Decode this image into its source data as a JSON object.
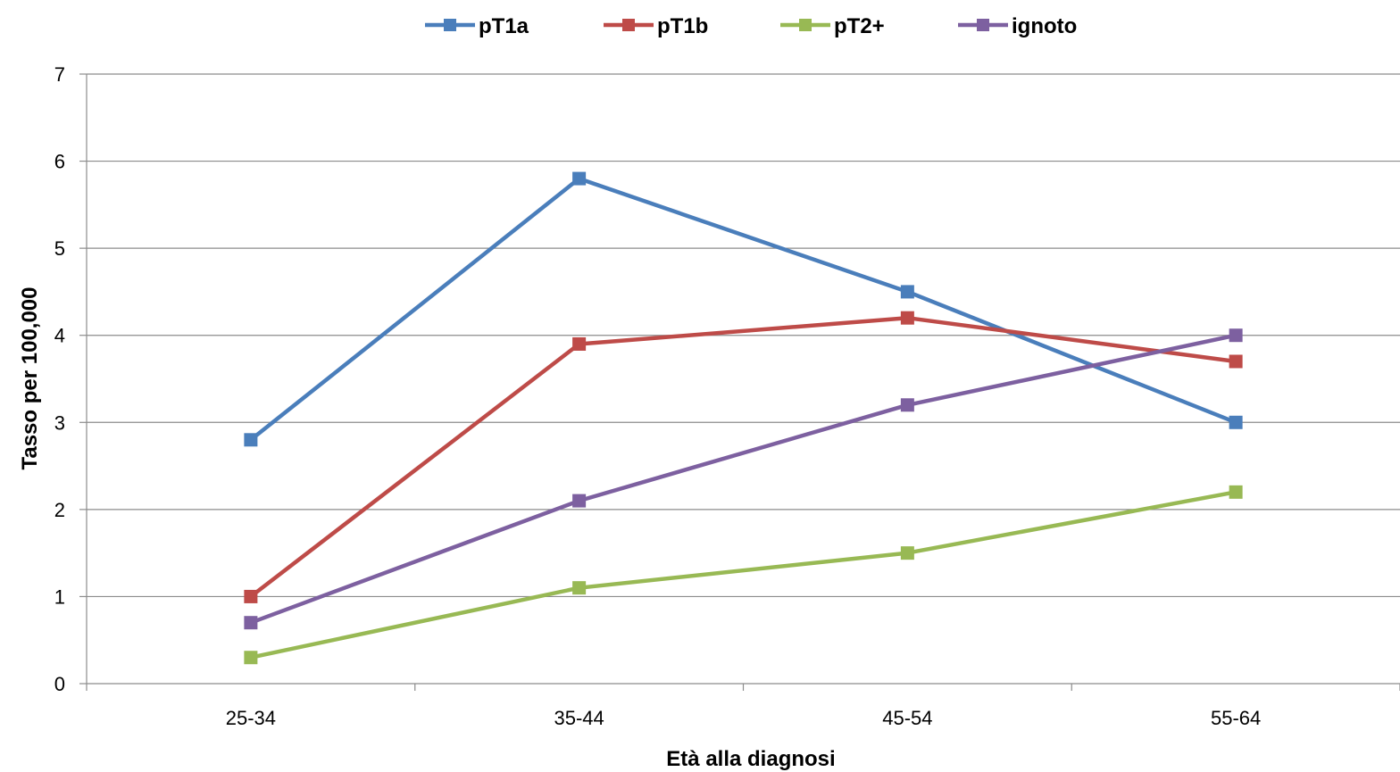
{
  "chart_data": {
    "type": "line",
    "title": "",
    "xlabel": "Età alla diagnosi",
    "ylabel": "Tasso per 100,000",
    "categories": [
      "25-34",
      "35-44",
      "45-54",
      "55-64"
    ],
    "ylim": [
      0,
      7
    ],
    "yticks": [
      0,
      1,
      2,
      3,
      4,
      5,
      6,
      7
    ],
    "grid": true,
    "legend_position": "top-center",
    "series": [
      {
        "name": "pT1a",
        "color": "#4A7EBB",
        "values": [
          2.8,
          5.8,
          4.5,
          3.0
        ]
      },
      {
        "name": "pT1b",
        "color": "#BE4B48",
        "values": [
          1.0,
          3.9,
          4.2,
          3.7
        ]
      },
      {
        "name": "pT2+",
        "color": "#98B954",
        "values": [
          0.3,
          1.1,
          1.5,
          2.2
        ]
      },
      {
        "name": "ignoto",
        "color": "#7D60A0",
        "values": [
          0.7,
          2.1,
          3.2,
          4.0
        ]
      }
    ]
  }
}
